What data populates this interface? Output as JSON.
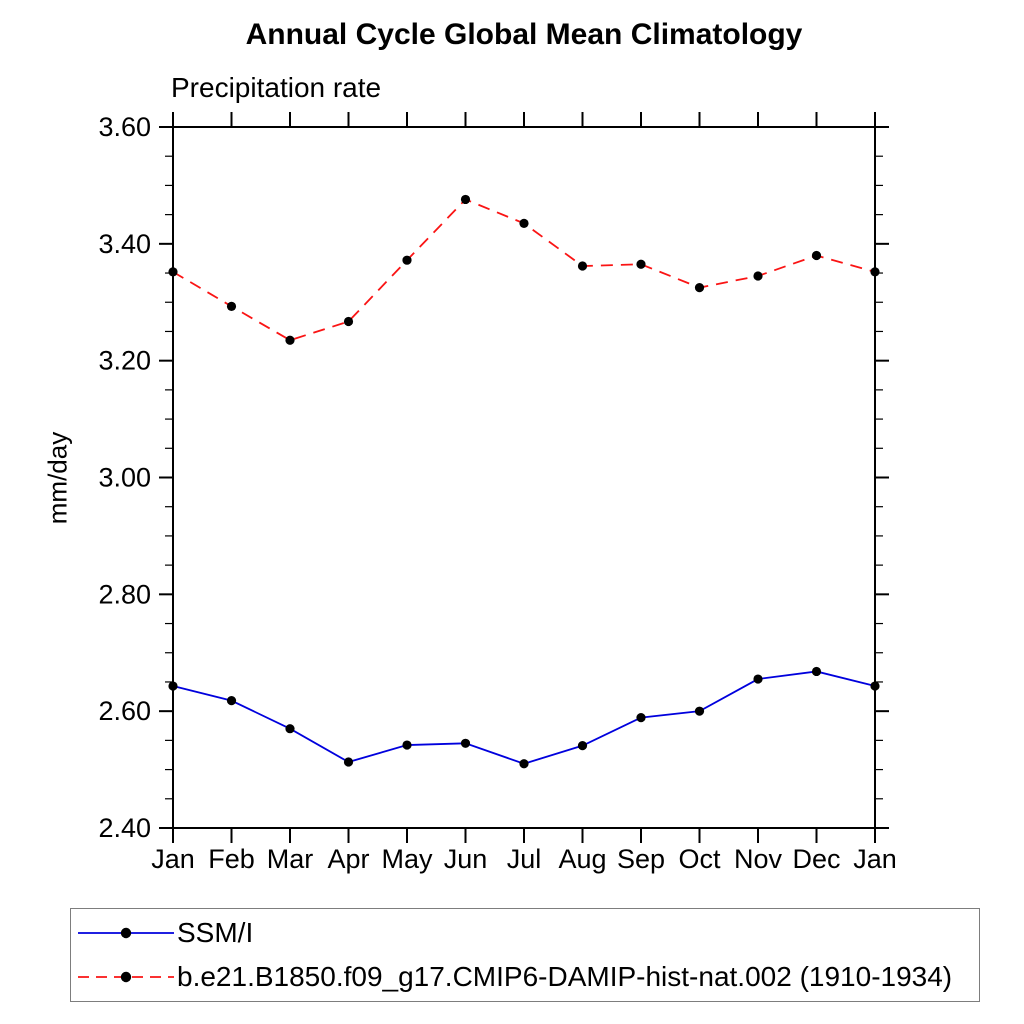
{
  "chart_data": {
    "type": "line",
    "title": "Annual Cycle Global Mean Climatology",
    "subtitle": "Precipitation rate",
    "ylabel": "mm/day",
    "xlabel": "",
    "categories": [
      "Jan",
      "Feb",
      "Mar",
      "Apr",
      "May",
      "Jun",
      "Jul",
      "Aug",
      "Sep",
      "Oct",
      "Nov",
      "Dec",
      "Jan"
    ],
    "series": [
      {
        "name": "SSM/I",
        "color": "#0000dd",
        "line_style": "solid",
        "marker": "filled-circle",
        "marker_color": "#000000",
        "values": [
          2.643,
          2.618,
          2.57,
          2.513,
          2.542,
          2.545,
          2.51,
          2.541,
          2.589,
          2.6,
          2.655,
          2.668,
          2.643
        ]
      },
      {
        "name": "b.e21.B1850.f09_g17.CMIP6-DAMIP-hist-nat.002 (1910-1934)",
        "color": "#fa1414",
        "line_style": "dashed",
        "marker": "filled-circle",
        "marker_color": "#000000",
        "values": [
          3.352,
          3.293,
          3.235,
          3.267,
          3.372,
          3.476,
          3.435,
          3.362,
          3.365,
          3.325,
          3.345,
          3.38,
          3.352
        ]
      }
    ],
    "ylim": [
      2.4,
      3.6
    ],
    "ytick_labels": [
      "2.40",
      "2.60",
      "2.80",
      "3.00",
      "3.20",
      "3.40",
      "3.60"
    ],
    "ytick_major_step": 0.2,
    "ytick_minor_step": 0.05,
    "grid": "off",
    "tick_direction": "out",
    "legend_position": "bottom",
    "axis_color": "#000000"
  }
}
